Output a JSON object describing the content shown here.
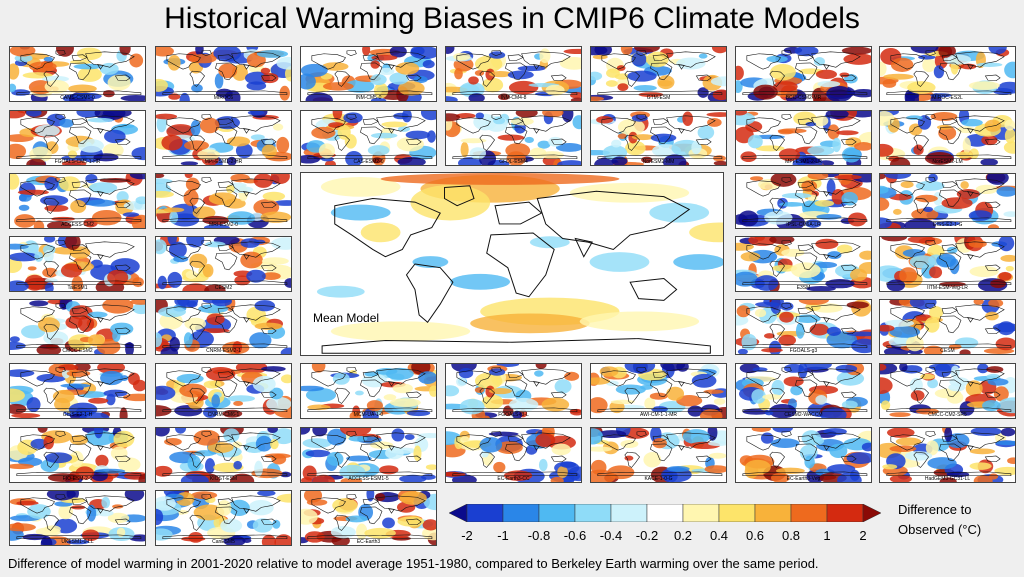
{
  "title": "Historical Warming Biases in CMIP6 Climate Models",
  "caption": "Difference of model warming in 2001-2020 relative to model average 1951-1980, compared to Berkeley Earth warming over the same period.",
  "legend": {
    "title_line1": "Difference to",
    "title_line2": "Observed (°C)",
    "ticks": [
      "-2",
      "-1",
      "-0.8",
      "-0.6",
      "-0.4",
      "-0.2",
      "0.2",
      "0.4",
      "0.6",
      "0.8",
      "1",
      "2"
    ],
    "colors": [
      "#0b0b8c",
      "#1a3fd1",
      "#2a86e8",
      "#4fb9f2",
      "#8fdcf8",
      "#cdf2fb",
      "#ffffff",
      "#fff6b0",
      "#fde46a",
      "#f8b23a",
      "#ee6a1e",
      "#d42a10",
      "#8a0a06"
    ]
  },
  "mean_panel": {
    "label": "Mean Model"
  },
  "models": [
    "CAMS-CSM1-0",
    "MIROC6",
    "INM-CM5-0",
    "INM-CM4-8",
    "GTM-ESM",
    "BCC-CSM2-MR",
    "MIROC-ES2L",
    "FGOALS-CM5-1-HR",
    "MPI-ESM1-2-HR",
    "CAS-ESM2-0",
    "GFDL-ESM4",
    "NorESM2-MM",
    "MPI-ESM1-2-LR",
    "NorESM2-LM",
    "ACCESS-CM2",
    "MRI-ESM2-0",
    "IPSL-CM6A-LR",
    "GISS-E2-1-G",
    "TaiESM1",
    "CESM2",
    "E3SM",
    "IITM-ESM-Veg-LR",
    "CMCC-ESM2",
    "CNRM-ESM2-1",
    "FGOALS-g3",
    "CESM",
    "GISS-E2-1-H",
    "CNRM-CM6-1",
    "MCM-UA-1-0",
    "FGOALS-f3-L",
    "AWI-CM-1-1-MR",
    "CESM2-WACCM",
    "CMCC-CM2-SR5",
    "FIO-ESM-2-0",
    "KIOST-ESM",
    "ACCESS-ESM1-5",
    "EC-Earth3-CC",
    "KACE-1-0-G",
    "EC-Earth3-Veg",
    "HadGEM3-GC31-LL",
    "UKESM1-0-LL",
    "CanESM5",
    "EC-Earth3"
  ]
}
